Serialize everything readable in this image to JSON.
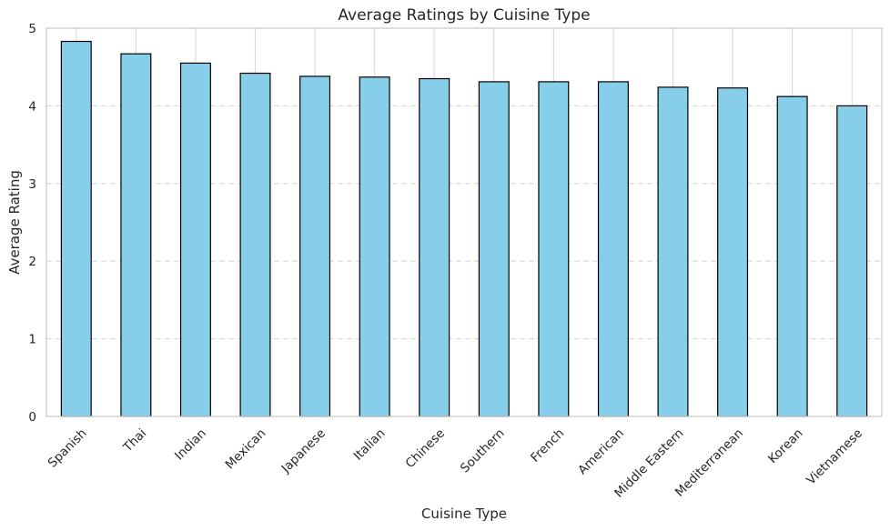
{
  "chart_data": {
    "type": "bar",
    "title": "Average Ratings by Cuisine Type",
    "xlabel": "Cuisine Type",
    "ylabel": "Average Rating",
    "categories": [
      "Spanish",
      "Thai",
      "Indian",
      "Mexican",
      "Japanese",
      "Italian",
      "Chinese",
      "Southern",
      "French",
      "American",
      "Middle Eastern",
      "Mediterranean",
      "Korean",
      "Vietnamese"
    ],
    "values": [
      4.83,
      4.67,
      4.55,
      4.42,
      4.38,
      4.37,
      4.35,
      4.31,
      4.31,
      4.31,
      4.24,
      4.23,
      4.12,
      4.0
    ],
    "ylim": [
      0,
      5
    ],
    "yticks": [
      "0",
      "1",
      "2",
      "3",
      "4",
      "5"
    ],
    "grid": {
      "y": "dashed",
      "x": "solid"
    },
    "colors": {
      "bar_fill": "#87ceeb",
      "bar_edge": "#000000",
      "grid": "#d9d9d9",
      "frame": "#cccccc",
      "text": "#262626"
    }
  }
}
